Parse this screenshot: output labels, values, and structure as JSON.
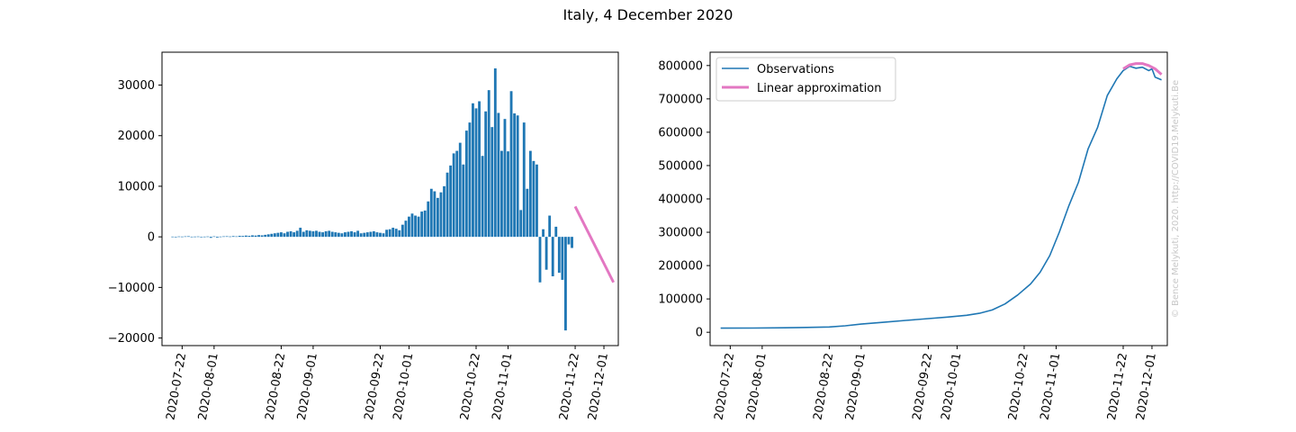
{
  "figure": {
    "title": "Italy, 4 December 2020",
    "watermark": "© Bence Melykuti, 2020. http://COVID19.Melykuti.Be"
  },
  "colors": {
    "observations": "#1f77b4",
    "approximation": "#e377c2"
  },
  "chart_data": [
    {
      "type": "bar",
      "title": "",
      "xlabel": "",
      "ylabel": "",
      "x_start": "2020-07-19",
      "ylim": [
        -21500,
        36500
      ],
      "yticks": [
        -20000,
        -10000,
        0,
        10000,
        20000,
        30000
      ],
      "xticks": [
        "2020-07-22",
        "2020-08-01",
        "2020-08-22",
        "2020-09-01",
        "2020-09-22",
        "2020-10-01",
        "2020-10-22",
        "2020-11-01",
        "2020-11-22",
        "2020-12-01"
      ],
      "values": [
        50,
        -50,
        80,
        60,
        100,
        120,
        40,
        60,
        80,
        -100,
        50,
        80,
        -200,
        100,
        -150,
        60,
        100,
        120,
        80,
        150,
        100,
        200,
        180,
        250,
        200,
        300,
        250,
        350,
        300,
        400,
        500,
        600,
        700,
        800,
        900,
        700,
        1000,
        1100,
        900,
        1200,
        1800,
        1000,
        1300,
        1200,
        1100,
        1200,
        1000,
        900,
        1100,
        1200,
        1000,
        900,
        800,
        700,
        900,
        1000,
        1100,
        900,
        1200,
        700,
        800,
        900,
        1000,
        1100,
        900,
        800,
        700,
        1400,
        1500,
        1800,
        1600,
        1300,
        2400,
        3200,
        4000,
        4600,
        4200,
        4000,
        5000,
        5200,
        7000,
        9500,
        9000,
        7700,
        8800,
        10000,
        12700,
        14100,
        16500,
        17000,
        18600,
        14300,
        21000,
        22600,
        26400,
        25400,
        26800,
        16000,
        24800,
        29000,
        21700,
        33300,
        24500,
        17000,
        23300,
        16900,
        28800,
        24400,
        24000,
        5300,
        22600,
        9500,
        17000,
        15000,
        14300,
        -9000,
        1500,
        -6500,
        4200,
        -7800,
        2000,
        -7100,
        -8500,
        -18500,
        -1500,
        -2200
      ],
      "series": [
        {
          "name": "",
          "type": "bar",
          "values_ref": "values"
        },
        {
          "name": "",
          "type": "line",
          "x": [
            "2020-11-22",
            "2020-12-04"
          ],
          "y": [
            6000,
            -9000
          ]
        }
      ]
    },
    {
      "type": "line",
      "title": "",
      "xlabel": "",
      "ylabel": "",
      "x_start": "2020-07-19",
      "ylim": [
        -40000,
        840000
      ],
      "yticks": [
        0,
        100000,
        200000,
        300000,
        400000,
        500000,
        600000,
        700000,
        800000
      ],
      "xticks": [
        "2020-07-22",
        "2020-08-01",
        "2020-08-22",
        "2020-09-01",
        "2020-09-22",
        "2020-10-01",
        "2020-10-22",
        "2020-11-01",
        "2020-11-22",
        "2020-12-01"
      ],
      "legend": {
        "position": "top-left",
        "entries": [
          "Observations",
          "Linear approximation"
        ]
      },
      "series": [
        {
          "name": "Observations",
          "points": [
            [
              "2020-07-19",
              12500
            ],
            [
              "2020-07-29",
              12700
            ],
            [
              "2020-08-08",
              13500
            ],
            [
              "2020-08-15",
              14500
            ],
            [
              "2020-08-22",
              16000
            ],
            [
              "2020-08-27",
              19500
            ],
            [
              "2020-09-01",
              24500
            ],
            [
              "2020-09-08",
              30000
            ],
            [
              "2020-09-15",
              35500
            ],
            [
              "2020-09-22",
              41000
            ],
            [
              "2020-09-28",
              45500
            ],
            [
              "2020-10-04",
              51000
            ],
            [
              "2020-10-08",
              57000
            ],
            [
              "2020-10-12",
              67000
            ],
            [
              "2020-10-16",
              85000
            ],
            [
              "2020-10-20",
              112000
            ],
            [
              "2020-10-24",
              145000
            ],
            [
              "2020-10-27",
              180000
            ],
            [
              "2020-10-30",
              230000
            ],
            [
              "2020-11-02",
              300000
            ],
            [
              "2020-11-05",
              380000
            ],
            [
              "2020-11-08",
              450000
            ],
            [
              "2020-11-11",
              550000
            ],
            [
              "2020-11-14",
              615000
            ],
            [
              "2020-11-17",
              710000
            ],
            [
              "2020-11-20",
              760000
            ],
            [
              "2020-11-22",
              785000
            ],
            [
              "2020-11-24",
              798000
            ],
            [
              "2020-11-26",
              792000
            ],
            [
              "2020-11-28",
              795000
            ],
            [
              "2020-11-30",
              785000
            ],
            [
              "2020-12-01",
              790000
            ],
            [
              "2020-12-02",
              765000
            ],
            [
              "2020-12-04",
              757000
            ]
          ]
        },
        {
          "name": "Linear approximation",
          "points": [
            [
              "2020-11-22",
              790000
            ],
            [
              "2020-11-24",
              802000
            ],
            [
              "2020-11-26",
              806000
            ],
            [
              "2020-11-28",
              806000
            ],
            [
              "2020-11-30",
              800000
            ],
            [
              "2020-12-02",
              790000
            ],
            [
              "2020-12-04",
              773000
            ]
          ]
        }
      ]
    }
  ]
}
